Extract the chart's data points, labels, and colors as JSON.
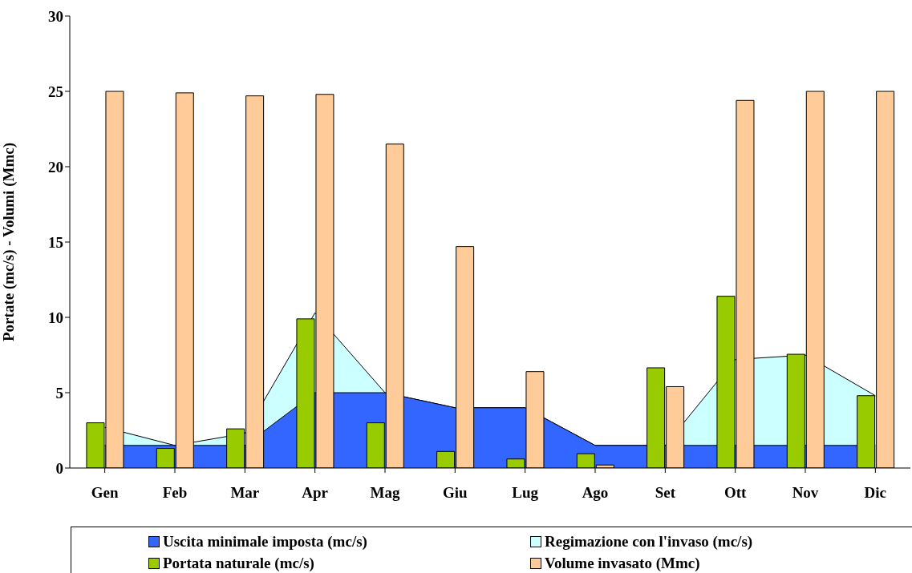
{
  "chart_data": {
    "type": "bar",
    "ylabel": "Portate (mc/s) - Volumi (Mmc)",
    "categories": [
      "Gen",
      "Feb",
      "Mar",
      "Apr",
      "Mag",
      "Giu",
      "Lug",
      "Ago",
      "Set",
      "Ott",
      "Nov",
      "Dic"
    ],
    "series": [
      {
        "name": "Uscita minimale imposta (mc/s)",
        "type": "area",
        "color": "#3366ff",
        "values": [
          1.5,
          1.5,
          1.5,
          5,
          5,
          4,
          4,
          1.5,
          1.5,
          1.5,
          1.5,
          1.5
        ]
      },
      {
        "name": "Regimazione con l'invaso (mc/s)",
        "type": "area",
        "color": "#ccffff",
        "values": [
          2.7,
          1.5,
          2.3,
          10.3,
          5,
          4,
          4,
          1.5,
          1.5,
          7.2,
          7.5,
          4.8
        ]
      },
      {
        "name": "Portata naturale (mc/s)",
        "color": "#99cc00",
        "values": [
          3.0,
          1.3,
          2.6,
          9.9,
          3.0,
          1.1,
          0.6,
          0.95,
          6.65,
          11.4,
          7.55,
          4.8
        ]
      },
      {
        "name": "Volume invasato (Mmc)",
        "color": "#ffcc99",
        "values": [
          25.0,
          24.9,
          24.7,
          24.8,
          21.5,
          14.7,
          6.4,
          0.2,
          5.4,
          24.4,
          25.0,
          25.0
        ]
      }
    ],
    "ylim": [
      0,
      30
    ],
    "yticks": [
      0,
      5,
      10,
      15,
      20,
      25,
      30
    ],
    "grid": false,
    "legend": "bottom"
  }
}
